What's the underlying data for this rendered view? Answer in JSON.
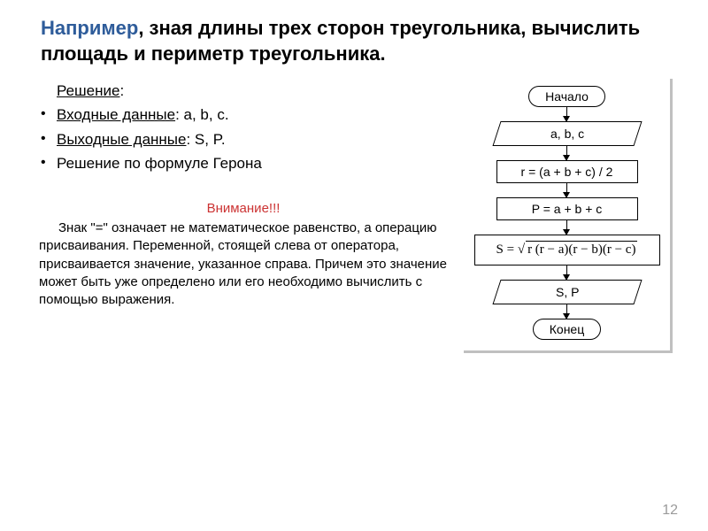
{
  "title": {
    "highlight": "Например",
    "rest": ", зная длины трех сторон треугольника, вычислить площадь и периметр треугольника."
  },
  "bullets": {
    "solution_label": "Решение",
    "input_label": "Входные данные",
    "input_vars": ": a, b, c.",
    "output_label": "Выходные данные",
    "output_vars": ": S, P.",
    "method": "Решение по формуле Герона"
  },
  "attention": {
    "title": "Внимание!!!",
    "body": "Знак \"=\" означает не математическое равенство, а операцию присваивания. Переменной, стоящей слева от оператора, присваивается значение, указанное справа. Причем это значение может быть уже определено или его необходимо вычислить с помощью выражения."
  },
  "flowchart": {
    "start": "Начало",
    "input": "a, b, c",
    "step1": "r = (a + b + c) / 2",
    "step2": "P = a + b + c",
    "step3_lhs": "S = ",
    "step3_root": "√",
    "step3_expr": "r (r − a)(r − b)(r − c)",
    "output": "S, P",
    "end": "Конец"
  },
  "page_number": "12"
}
